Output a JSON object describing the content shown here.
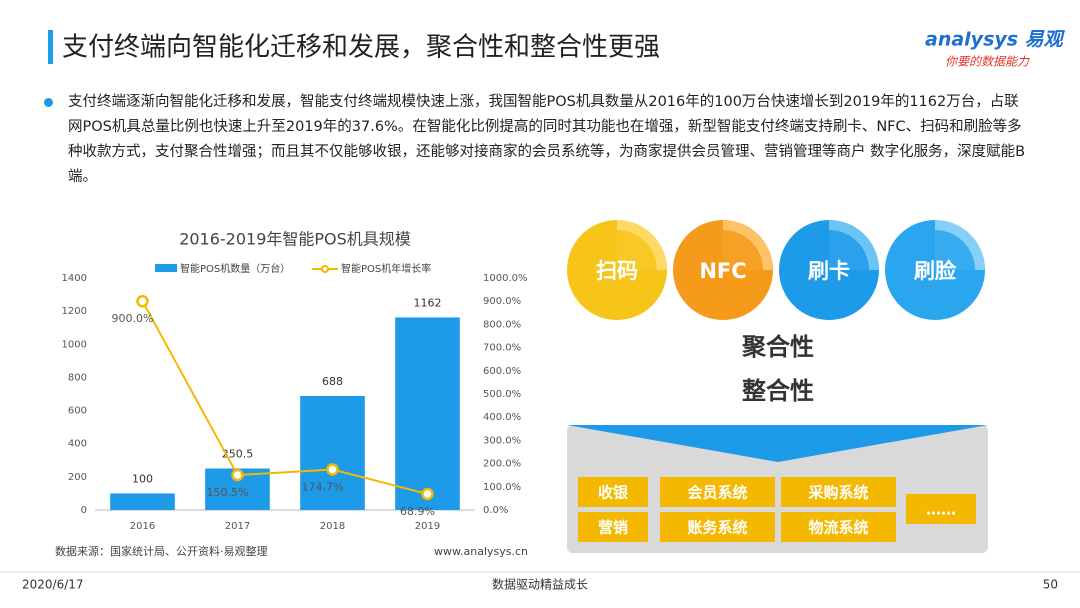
{
  "header": {
    "title": "支付终端向智能化迁移和发展，聚合性和整合性更强",
    "logo": "analysys 易观",
    "slogan": "你要的数据能力"
  },
  "body": "支付终端逐渐向智能化迁移和发展，智能支付终端规模快速上涨，我国智能POS机具数量从2016年的100万台快速增长到2019年的1162万台，占联网POS机具总量比例也快速上升至2019年的37.6%。在智能化比例提高的同时其功能也在增强，新型智能支付终端支持刷卡、NFC、扫码和刷脸等多种收款方式，支付聚合性增强；而且其不仅能够收银，还能够对接商家的会员系统等，为商家提供会员管理、营销管理等商户 数字化服务，深度赋能B端。",
  "chart_data": {
    "type": "bar_line",
    "title": "2016-2019年智能POS机具规模",
    "categories": [
      "2016",
      "2017",
      "2018",
      "2019"
    ],
    "series": [
      {
        "name": "智能POS机数量（万台）",
        "color": "#1e9be8",
        "values": [
          100,
          250.5,
          688,
          1162
        ]
      },
      {
        "name": "智能POS机年增长率",
        "color": "#f5b800",
        "axis": "y2",
        "values": [
          900,
          150.5,
          174.7,
          68.9
        ],
        "value_labels": [
          "900.0%",
          "150.5%",
          "174.7%",
          "68.9%"
        ]
      }
    ],
    "ylim": [
      0,
      1400
    ],
    "yticks": [
      0,
      200,
      400,
      600,
      800,
      1000,
      1200,
      1400
    ],
    "y2lim": [
      0,
      1000
    ],
    "y2ticks": [
      {
        "value": 0,
        "label": "0.0%"
      },
      {
        "value": 100,
        "label": "100.0%"
      },
      {
        "value": 200,
        "label": "200.0%"
      },
      {
        "value": 300,
        "label": "300.0%"
      },
      {
        "value": 400,
        "label": "400.0%"
      },
      {
        "value": 500,
        "label": "500.0%"
      },
      {
        "value": 600,
        "label": "600.0%"
      },
      {
        "value": 700,
        "label": "700.0%"
      },
      {
        "value": 800,
        "label": "800.0%"
      },
      {
        "value": 900,
        "label": "900.0%"
      },
      {
        "value": 1000,
        "label": "1000.0%"
      }
    ],
    "source": "数据来源：国家统计局、公开资料·易观整理",
    "site": "www.analysys.cn"
  },
  "diagram": {
    "methods": [
      "扫码",
      "NFC",
      "刷卡",
      "刷脸"
    ],
    "traits": [
      "聚合性",
      "整合性"
    ],
    "systems": [
      "收银",
      "营销",
      "会员系统",
      "账务系统",
      "采购系统",
      "物流系统",
      "……"
    ]
  },
  "footer": {
    "date": "2020/6/17",
    "motto": "数据驱动精益成长",
    "page": "50"
  }
}
